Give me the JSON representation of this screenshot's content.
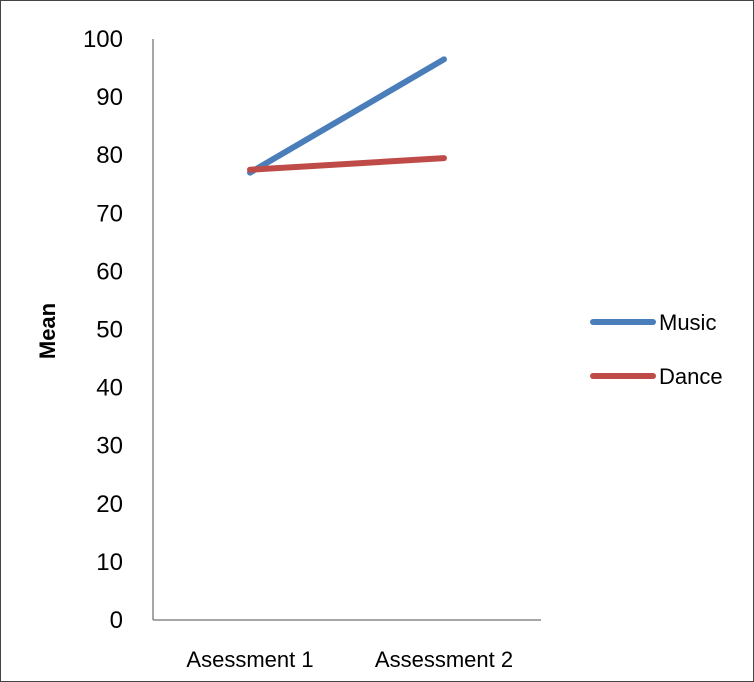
{
  "chart_data": {
    "type": "line",
    "ylabel": "Mean",
    "xlabel": "",
    "categories": [
      "Asessment 1",
      "Assessment 2"
    ],
    "ylim": [
      0,
      100
    ],
    "yticks": [
      0,
      10,
      20,
      30,
      40,
      50,
      60,
      70,
      80,
      90,
      100
    ],
    "grid": false,
    "legend_position": "right",
    "series": [
      {
        "name": "Music",
        "values": [
          77,
          96.5
        ],
        "color": "#4a7ebb"
      },
      {
        "name": "Dance",
        "values": [
          77.5,
          79.5
        ],
        "color": "#be4b48"
      }
    ]
  }
}
